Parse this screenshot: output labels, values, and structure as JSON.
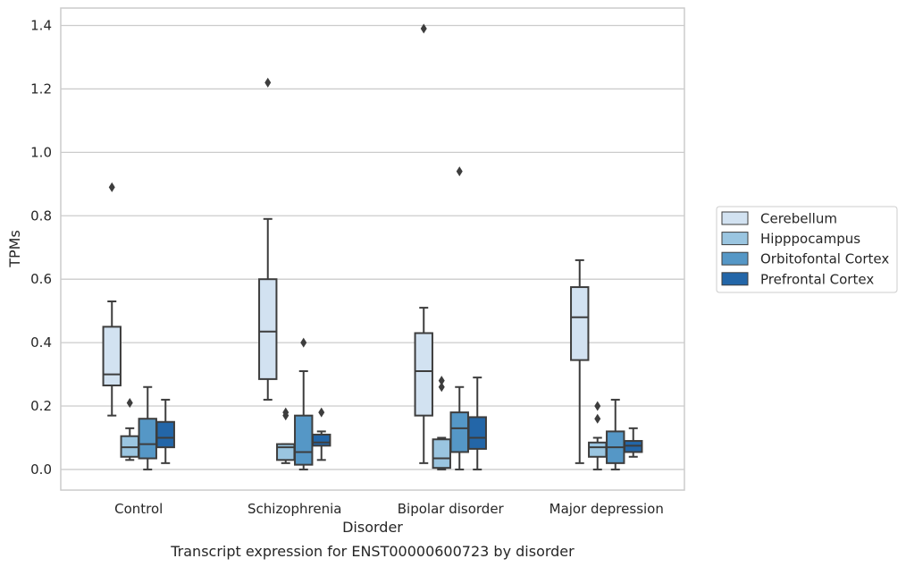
{
  "caption": "Transcript expression for ENST00000600723 by disorder",
  "chart_data": {
    "type": "box",
    "xlabel": "Disorder",
    "ylabel": "TPMs",
    "ylim": [
      -0.065,
      1.455
    ],
    "yticks": [
      0.0,
      0.2,
      0.4,
      0.6,
      0.8,
      1.0,
      1.2,
      1.4
    ],
    "ytick_labels": [
      "0.0",
      "0.2",
      "0.4",
      "0.6",
      "0.8",
      "1.0",
      "1.2",
      "1.4"
    ],
    "grid": "horizontal",
    "legend_position": "right",
    "categories": [
      "Control",
      "Schizophrenia",
      "Bipolar disorder",
      "Major depression"
    ],
    "box_edge_color": "#3d3d3d",
    "series": [
      {
        "name": "Cerebellum",
        "color": "#d2e2f1",
        "boxes": [
          {
            "whislo": 0.17,
            "q1": 0.265,
            "med": 0.3,
            "q3": 0.45,
            "whishi": 0.53,
            "fliers": [
              0.89
            ]
          },
          {
            "whislo": 0.22,
            "q1": 0.285,
            "med": 0.435,
            "q3": 0.6,
            "whishi": 0.79,
            "fliers": [
              1.22
            ]
          },
          {
            "whislo": 0.02,
            "q1": 0.17,
            "med": 0.31,
            "q3": 0.43,
            "whishi": 0.51,
            "fliers": [
              1.39
            ]
          },
          {
            "whislo": 0.02,
            "q1": 0.345,
            "med": 0.48,
            "q3": 0.575,
            "whishi": 0.66,
            "fliers": []
          }
        ]
      },
      {
        "name": "Hipppocampus",
        "color": "#9ac5e0",
        "boxes": [
          {
            "whislo": 0.03,
            "q1": 0.04,
            "med": 0.07,
            "q3": 0.105,
            "whishi": 0.13,
            "fliers": [
              0.21
            ]
          },
          {
            "whislo": 0.02,
            "q1": 0.03,
            "med": 0.07,
            "q3": 0.08,
            "whishi": 0.08,
            "fliers": [
              0.18,
              0.17
            ]
          },
          {
            "whislo": 0.0,
            "q1": 0.005,
            "med": 0.035,
            "q3": 0.095,
            "whishi": 0.1,
            "fliers": [
              0.28,
              0.26
            ]
          },
          {
            "whislo": 0.0,
            "q1": 0.04,
            "med": 0.07,
            "q3": 0.085,
            "whishi": 0.1,
            "fliers": [
              0.2,
              0.16
            ]
          }
        ]
      },
      {
        "name": "Orbitofontal Cortex",
        "color": "#5597c6",
        "boxes": [
          {
            "whislo": 0.0,
            "q1": 0.035,
            "med": 0.08,
            "q3": 0.16,
            "whishi": 0.26,
            "fliers": []
          },
          {
            "whislo": 0.0,
            "q1": 0.015,
            "med": 0.055,
            "q3": 0.17,
            "whishi": 0.31,
            "fliers": [
              0.4
            ]
          },
          {
            "whislo": 0.0,
            "q1": 0.055,
            "med": 0.13,
            "q3": 0.18,
            "whishi": 0.26,
            "fliers": [
              0.94
            ]
          },
          {
            "whislo": 0.0,
            "q1": 0.02,
            "med": 0.07,
            "q3": 0.12,
            "whishi": 0.22,
            "fliers": []
          }
        ]
      },
      {
        "name": "Prefrontal Cortex",
        "color": "#2366a8",
        "boxes": [
          {
            "whislo": 0.02,
            "q1": 0.07,
            "med": 0.1,
            "q3": 0.15,
            "whishi": 0.22,
            "fliers": []
          },
          {
            "whislo": 0.03,
            "q1": 0.075,
            "med": 0.085,
            "q3": 0.11,
            "whishi": 0.12,
            "fliers": [
              0.18
            ]
          },
          {
            "whislo": 0.0,
            "q1": 0.065,
            "med": 0.1,
            "q3": 0.165,
            "whishi": 0.29,
            "fliers": []
          },
          {
            "whislo": 0.04,
            "q1": 0.055,
            "med": 0.075,
            "q3": 0.09,
            "whishi": 0.13,
            "fliers": []
          }
        ]
      }
    ]
  }
}
